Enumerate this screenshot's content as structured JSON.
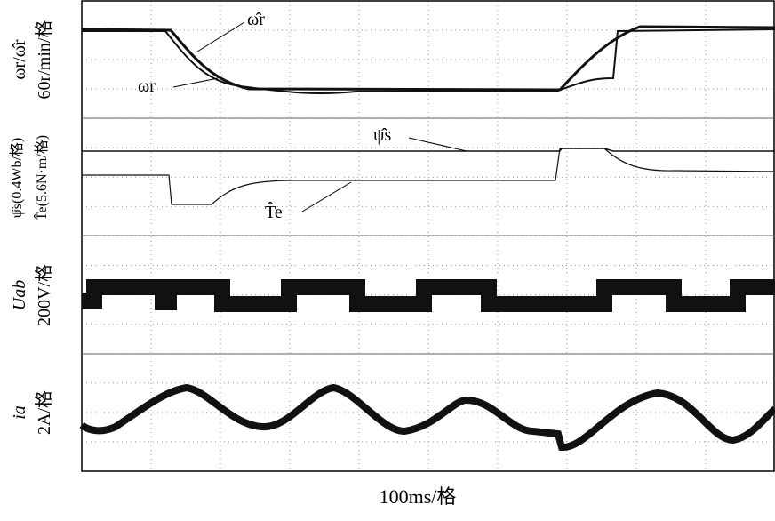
{
  "panels": [
    {
      "label": "ωr/ω̂r",
      "scale": "60r/min/格"
    },
    {
      "label": "ψ̂s(0.4Wb/格)",
      "scale": "T̂e(5.6N·m/格)"
    },
    {
      "label": "Uab",
      "scale": "200V/格"
    },
    {
      "label": "ia",
      "scale": "2A/格"
    }
  ],
  "annotations": {
    "speed_estimated": "ω̂r",
    "speed_actual": "ωr",
    "flux": "ψ̂s",
    "torque": "T̂e"
  },
  "x_label": "100ms/格"
}
